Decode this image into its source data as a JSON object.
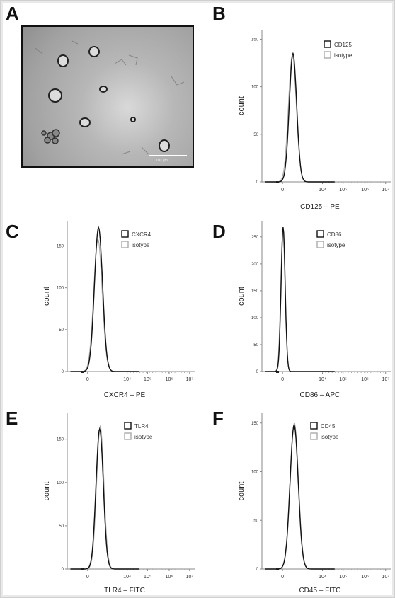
{
  "panel_labels": [
    "A",
    "B",
    "C",
    "D",
    "E",
    "F"
  ],
  "micrograph": {
    "scale_bar_label": "100 μm"
  },
  "chart_data": [
    {
      "panel": "B",
      "type": "area",
      "xlabel": "CD125 – PE",
      "ylabel": "count",
      "y_ticks": [
        0,
        50,
        100,
        150
      ],
      "ylim": [
        0,
        160
      ],
      "x_tick_labels": [
        "0",
        "10⁴",
        "10⁵",
        "10⁶",
        "10⁷"
      ],
      "series": [
        {
          "name": "CD125",
          "color": "#111111",
          "peak_x": 0.9,
          "peak_count": 135,
          "width": 0.45
        },
        {
          "name": "isotype",
          "color": "#aaaaaa",
          "peak_x": 0.85,
          "peak_count": 133,
          "width": 0.48
        }
      ]
    },
    {
      "panel": "C",
      "type": "area",
      "xlabel": "CXCR4 – PE",
      "ylabel": "count",
      "y_ticks": [
        0,
        50,
        100,
        150
      ],
      "ylim": [
        0,
        180
      ],
      "x_tick_labels": [
        "0",
        "10⁴",
        "10⁵",
        "10⁶",
        "10⁷"
      ],
      "series": [
        {
          "name": "CXCR4",
          "color": "#111111",
          "peak_x": 0.95,
          "peak_count": 172,
          "width": 0.5
        },
        {
          "name": "isotype",
          "color": "#aaaaaa",
          "peak_x": 0.9,
          "peak_count": 158,
          "width": 0.52
        }
      ]
    },
    {
      "panel": "D",
      "type": "area",
      "xlabel": "CD86 – APC",
      "ylabel": "count",
      "y_ticks": [
        0,
        50,
        100,
        150,
        200,
        250
      ],
      "ylim": [
        0,
        280
      ],
      "x_tick_labels": [
        "0",
        "10⁴",
        "10⁵",
        "10⁶",
        "10⁷"
      ],
      "series": [
        {
          "name": "CD86",
          "color": "#111111",
          "peak_x": 0.05,
          "peak_count": 268,
          "width": 0.25
        },
        {
          "name": "isotype",
          "color": "#aaaaaa",
          "peak_x": 0.03,
          "peak_count": 262,
          "width": 0.26
        }
      ]
    },
    {
      "panel": "E",
      "type": "area",
      "xlabel": "TLR4 – FITC",
      "ylabel": "count",
      "y_ticks": [
        0,
        50,
        100,
        150
      ],
      "ylim": [
        0,
        180
      ],
      "x_tick_labels": [
        "0",
        "10⁴",
        "10⁵",
        "10⁶",
        "10⁷"
      ],
      "series": [
        {
          "name": "TLR4",
          "color": "#111111",
          "peak_x": 1.05,
          "peak_count": 162,
          "width": 0.45
        },
        {
          "name": "isotype",
          "color": "#aaaaaa",
          "peak_x": 1.1,
          "peak_count": 165,
          "width": 0.45
        }
      ]
    },
    {
      "panel": "F",
      "type": "area",
      "xlabel": "CD45 – FITC",
      "ylabel": "count",
      "y_ticks": [
        0,
        50,
        100,
        150
      ],
      "ylim": [
        0,
        160
      ],
      "x_tick_labels": [
        "0",
        "10⁴",
        "10⁵",
        "10⁶",
        "10⁷"
      ],
      "series": [
        {
          "name": "CD45",
          "color": "#111111",
          "peak_x": 1.0,
          "peak_count": 148,
          "width": 0.5
        },
        {
          "name": "isotype",
          "color": "#aaaaaa",
          "peak_x": 1.02,
          "peak_count": 150,
          "width": 0.5
        }
      ]
    }
  ]
}
